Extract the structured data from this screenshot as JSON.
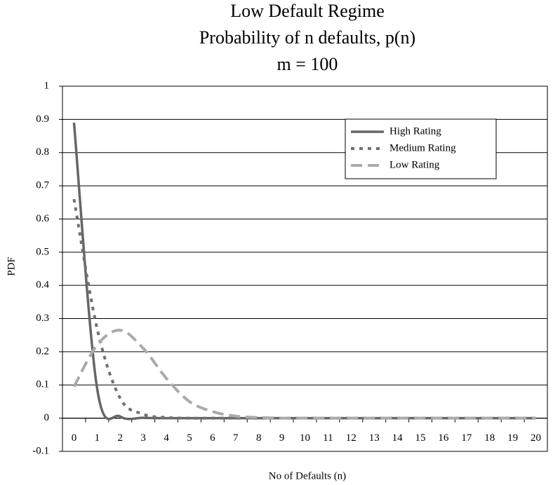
{
  "chart_data": {
    "type": "line",
    "title": [
      "Low Default Regime",
      "Probability of n defaults, p(n)",
      "m = 100"
    ],
    "x_label": "No of Defaults (n)",
    "y_label": "PDF",
    "categories": [
      "0",
      "1",
      "2",
      "3",
      "4",
      "5",
      "6",
      "7",
      "8",
      "9",
      "10",
      "11",
      "12",
      "13",
      "14",
      "15",
      "16",
      "17",
      "18",
      "19",
      "20"
    ],
    "series": [
      {
        "name": "High Rating",
        "color": "#666666",
        "style": "solid",
        "values": [
          0.89,
          0.09,
          0.005,
          0.001,
          0,
          0,
          0,
          0,
          0,
          0,
          0,
          0,
          0,
          0,
          0,
          0,
          0,
          0,
          0,
          0,
          0
        ]
      },
      {
        "name": "Medium Rating",
        "color": "#707070",
        "style": "dotted",
        "values": [
          0.66,
          0.27,
          0.06,
          0.012,
          0.002,
          0,
          0,
          0,
          0,
          0,
          0,
          0,
          0,
          0,
          0,
          0,
          0,
          0,
          0,
          0,
          0
        ]
      },
      {
        "name": "Low Rating",
        "color": "#aaaaaa",
        "style": "dashed",
        "values": [
          0.095,
          0.22,
          0.265,
          0.21,
          0.12,
          0.05,
          0.02,
          0.006,
          0.002,
          0,
          0,
          0,
          0,
          0,
          0,
          0,
          0,
          0,
          0,
          0,
          0
        ]
      }
    ],
    "ylim": [
      -0.1,
      1
    ],
    "yticks": [
      -0.1,
      0,
      0.1,
      0.2,
      0.3,
      0.4,
      0.5,
      0.6,
      0.7,
      0.8,
      0.9,
      1
    ],
    "grid": true,
    "legend": "upper right"
  }
}
